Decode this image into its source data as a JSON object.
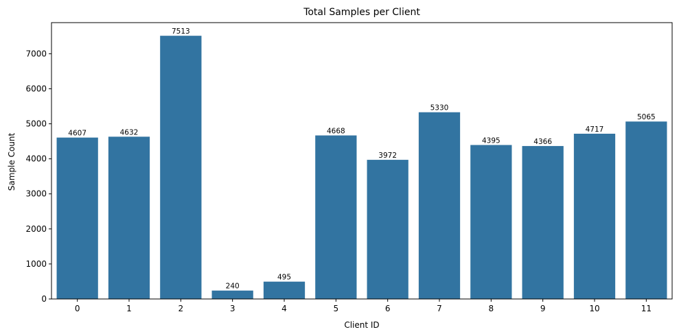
{
  "chart_data": {
    "type": "bar",
    "title": "Total Samples per Client",
    "xlabel": "Client ID",
    "ylabel": "Sample Count",
    "categories": [
      "0",
      "1",
      "2",
      "3",
      "4",
      "5",
      "6",
      "7",
      "8",
      "9",
      "10",
      "11"
    ],
    "values": [
      4607,
      4632,
      7513,
      240,
      495,
      4668,
      3972,
      5330,
      4395,
      4366,
      4717,
      5065
    ],
    "data_labels": [
      "4607",
      "4632",
      "7513",
      "240",
      "495",
      "4668",
      "3972",
      "5330",
      "4395",
      "4366",
      "4717",
      "5065"
    ],
    "ylim": [
      0,
      7888
    ],
    "yticks": [
      0,
      1000,
      2000,
      3000,
      4000,
      5000,
      6000,
      7000
    ],
    "ytick_labels": [
      "0",
      "1000",
      "2000",
      "3000",
      "4000",
      "5000",
      "6000",
      "7000"
    ],
    "grid": false,
    "legend": "none",
    "bar_color": "#3274a1"
  }
}
